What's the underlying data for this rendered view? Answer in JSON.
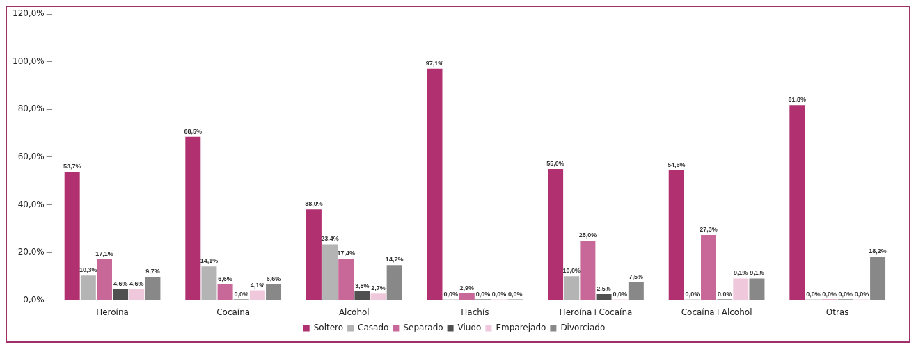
{
  "chart_data": {
    "type": "bar",
    "categories": [
      "Heroína",
      "Cocaína",
      "Alcohol",
      "Hachís",
      "Heroína+Cocaína",
      "Cocaína+Alcohol",
      "Otras"
    ],
    "ylim": [
      0,
      120
    ],
    "yticks": [
      {
        "value": 0,
        "label": "0,0%"
      },
      {
        "value": 20,
        "label": "20,0%"
      },
      {
        "value": 40,
        "label": "40,0%"
      },
      {
        "value": 60,
        "label": "60,0%"
      },
      {
        "value": 80,
        "label": "80,0%"
      },
      {
        "value": 100,
        "label": "100,0%"
      },
      {
        "value": 120,
        "label": "120,0%"
      }
    ],
    "grid": false,
    "legend": "bottom",
    "series": [
      {
        "name": "Soltero",
        "color": "#b03070",
        "values": [
          53.7,
          68.5,
          38.0,
          97.1,
          55.0,
          54.5,
          81.8
        ],
        "value_labels": [
          "53,7%",
          "68,5%",
          "38,0%",
          "97,1%",
          "55,0%",
          "54,5%",
          "81,8%"
        ]
      },
      {
        "name": "Casado",
        "color": "#b4b4b4",
        "values": [
          10.3,
          14.1,
          23.4,
          0.0,
          10.0,
          0.0,
          0.0
        ],
        "value_labels": [
          "10,3%",
          "14,1%",
          "23,4%",
          "0,0%",
          "10,0%",
          "0,0%",
          "0,0%"
        ]
      },
      {
        "name": "Separado",
        "color": "#c86898",
        "values": [
          17.1,
          6.6,
          17.4,
          2.9,
          25.0,
          27.3,
          0.0
        ],
        "value_labels": [
          "17,1%",
          "6,6%",
          "17,4%",
          "2,9%",
          "25,0%",
          "27,3%",
          "0,0%"
        ]
      },
      {
        "name": "Viudo",
        "color": "#505050",
        "values": [
          4.6,
          0.0,
          3.8,
          0.0,
          2.5,
          0.0,
          0.0
        ],
        "value_labels": [
          "4,6%",
          "0,0%",
          "3,8%",
          "0,0%",
          "2,5%",
          "0,0%",
          "0,0%"
        ]
      },
      {
        "name": "Emparejado",
        "color": "#f0c8dc",
        "values": [
          4.6,
          4.1,
          2.7,
          0.0,
          0.0,
          9.1,
          0.0
        ],
        "value_labels": [
          "4,6%",
          "4,1%",
          "2,7%",
          "0,0%",
          "0,0%",
          "9,1%",
          "0,0%"
        ]
      },
      {
        "name": "Divorciado",
        "color": "#888888",
        "values": [
          9.7,
          6.6,
          14.7,
          0.0,
          7.5,
          9.1,
          18.2
        ],
        "value_labels": [
          "9,7%",
          "6,6%",
          "14,7%",
          "0,0%",
          "7,5%",
          "9,1%",
          "18,2%"
        ]
      }
    ]
  }
}
